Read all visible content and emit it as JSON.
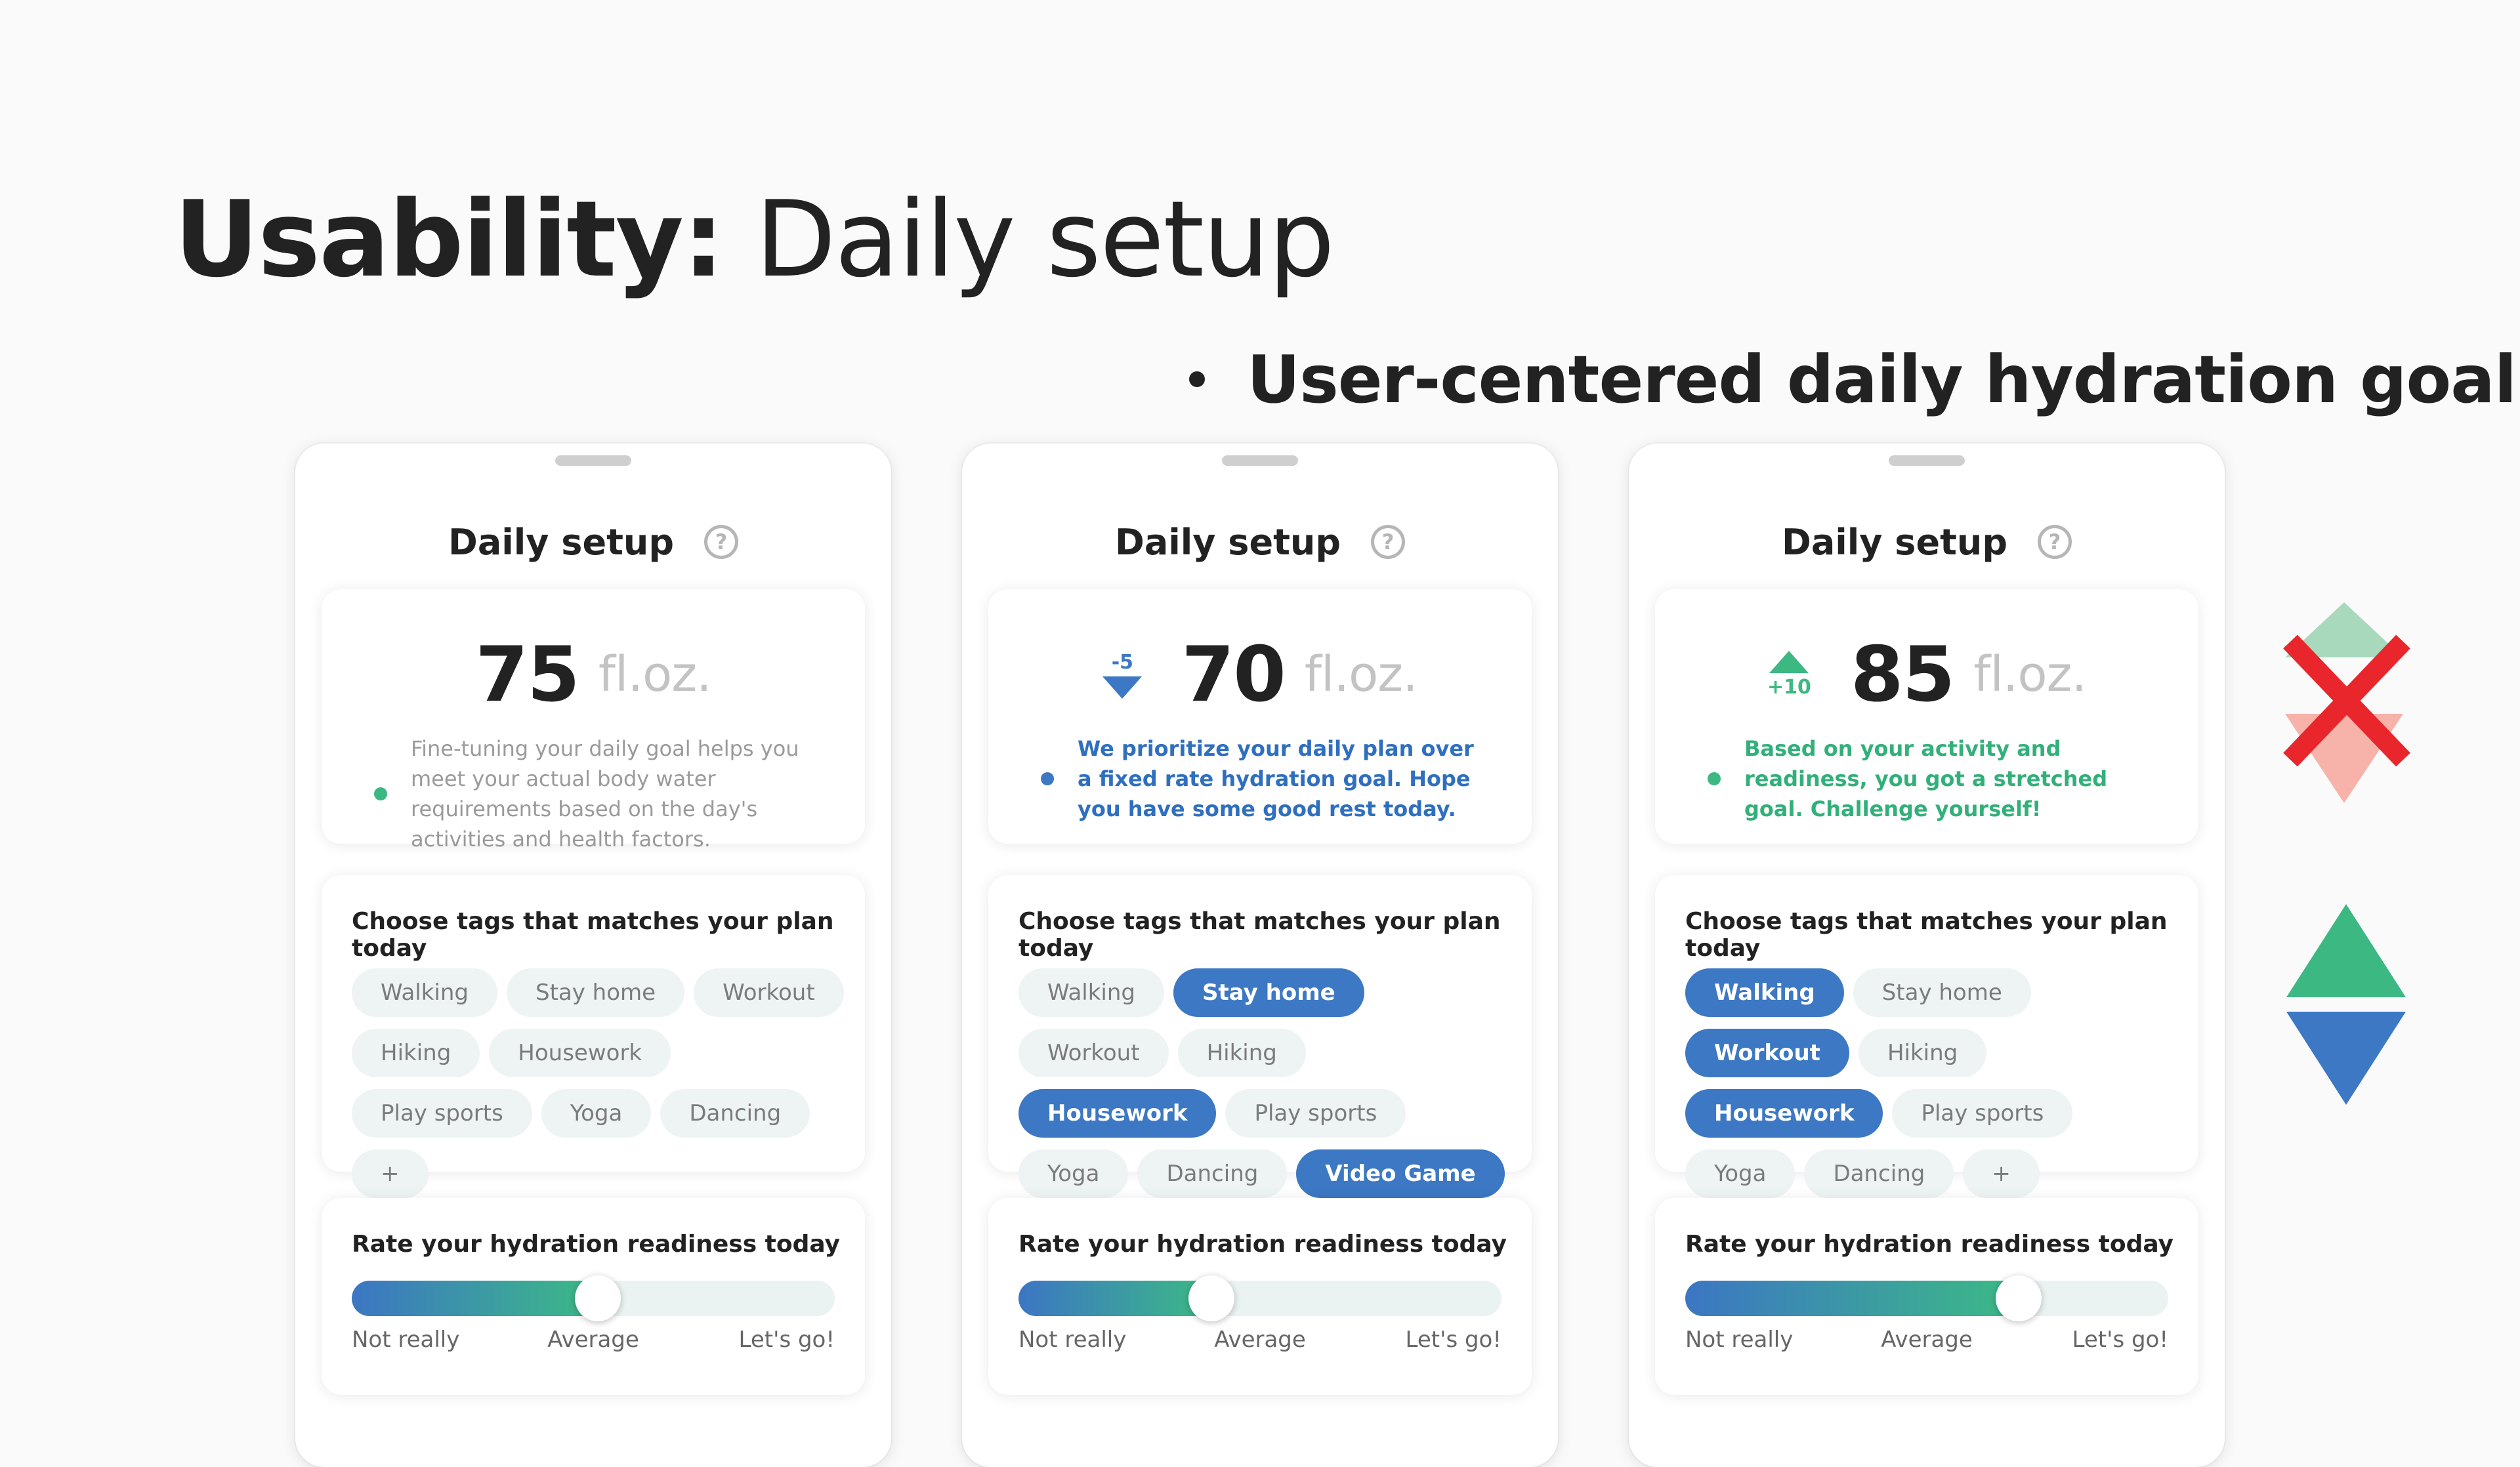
{
  "slide": {
    "title_bold": "Usability:",
    "title_regular": " Daily setup",
    "bullet": "User-centered daily hydration goal"
  },
  "colors": {
    "accent_blue": "#3c78c3",
    "accent_green": "#3cb882",
    "reject_red": "#e8262b"
  },
  "icons": {
    "help": "question-circle-icon",
    "reject": "red-x-icon",
    "adjust": "up-down-triangles-icon"
  },
  "phones": [
    {
      "header": "Daily setup",
      "help_glyph": "?",
      "goal_value": "75",
      "goal_unit": "fl.oz.",
      "delta": "",
      "note": "Fine-tuning your daily goal helps you meet your actual body water requirements based on the day's activities and health factors.",
      "tags_title": "Choose tags that matches your plan today",
      "tags": [
        {
          "label": "Walking",
          "selected": false
        },
        {
          "label": "Stay home",
          "selected": false
        },
        {
          "label": "Workout",
          "selected": false
        },
        {
          "label": "Hiking",
          "selected": false
        },
        {
          "label": "Housework",
          "selected": false
        },
        {
          "label": "Play sports",
          "selected": false
        },
        {
          "label": "Yoga",
          "selected": false
        },
        {
          "label": "Dancing",
          "selected": false
        },
        {
          "label": "+",
          "selected": false
        }
      ],
      "rate_title": "Rate your hydration readiness today",
      "readiness": 0.51,
      "rate_labels": [
        "Not really",
        "Average",
        "Let's go!"
      ]
    },
    {
      "header": "Daily setup",
      "help_glyph": "?",
      "goal_value": "70",
      "goal_unit": "fl.oz.",
      "delta": "-5",
      "note": "We prioritize your daily plan over a fixed rate hydration goal. Hope you have some good rest today.",
      "tags_title": "Choose tags that matches your plan today",
      "tags": [
        {
          "label": "Walking",
          "selected": false
        },
        {
          "label": "Stay home",
          "selected": true
        },
        {
          "label": "Workout",
          "selected": false
        },
        {
          "label": "Hiking",
          "selected": false
        },
        {
          "label": "Housework",
          "selected": true
        },
        {
          "label": "Play sports",
          "selected": false
        },
        {
          "label": "Yoga",
          "selected": false
        },
        {
          "label": "Dancing",
          "selected": false
        },
        {
          "label": "Video Game",
          "selected": true
        }
      ],
      "rate_title": "Rate your hydration readiness today",
      "readiness": 0.4,
      "rate_labels": [
        "Not really",
        "Average",
        "Let's go!"
      ]
    },
    {
      "header": "Daily setup",
      "help_glyph": "?",
      "goal_value": "85",
      "goal_unit": "fl.oz.",
      "delta": "+10",
      "note": "Based on your activity and readiness, you got a stretched goal. Challenge yourself!",
      "tags_title": "Choose tags that matches your plan today",
      "tags": [
        {
          "label": "Walking",
          "selected": true
        },
        {
          "label": "Stay home",
          "selected": false
        },
        {
          "label": "Workout",
          "selected": true
        },
        {
          "label": "Hiking",
          "selected": false
        },
        {
          "label": "Housework",
          "selected": true
        },
        {
          "label": "Play sports",
          "selected": false
        },
        {
          "label": "Yoga",
          "selected": false
        },
        {
          "label": "Dancing",
          "selected": false
        },
        {
          "label": "+",
          "selected": false
        }
      ],
      "rate_title": "Rate your hydration readiness today",
      "readiness": 0.69,
      "rate_labels": [
        "Not really",
        "Average",
        "Let's go!"
      ]
    }
  ]
}
